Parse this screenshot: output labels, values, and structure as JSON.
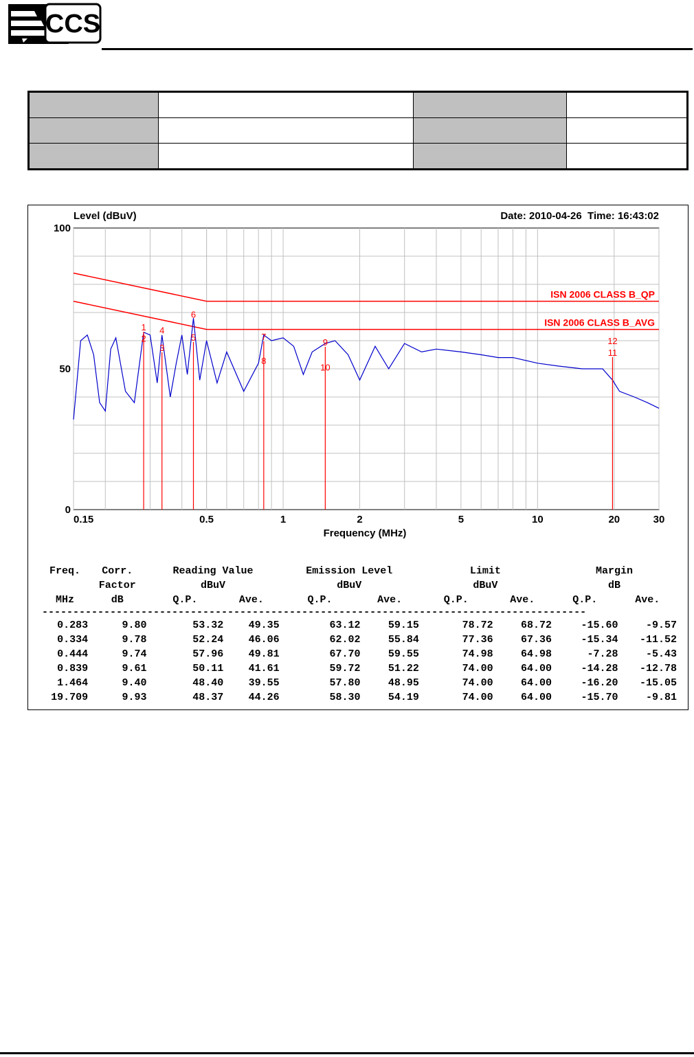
{
  "logo": {
    "text": "CCS"
  },
  "chart_data": {
    "type": "line",
    "title": "",
    "ylabel": "Level (dBuV)",
    "xlabel": "Frequency (MHz)",
    "date_text": "Date: 2010-04-26  Time: 16:43:02",
    "x_scale": "log",
    "xlim": [
      0.15,
      30
    ],
    "ylim": [
      0,
      100
    ],
    "x_ticks": [
      0.15,
      0.5,
      1,
      2,
      5,
      10,
      20,
      30
    ],
    "x_tick_labels": [
      "0.15",
      "0.5",
      "1",
      "2",
      "5",
      "10",
      "20",
      "30"
    ],
    "y_ticks": [
      0,
      50,
      100
    ],
    "y_tick_labels": [
      "0",
      "50",
      "100"
    ],
    "grid": true,
    "series": [
      {
        "name": "ISN 2006 CLASS B_QP",
        "color": "#ff0000",
        "x": [
          0.15,
          0.5,
          30
        ],
        "y": [
          84,
          74,
          74
        ]
      },
      {
        "name": "ISN 2006 CLASS B_AVG",
        "color": "#ff0000",
        "x": [
          0.15,
          0.5,
          30
        ],
        "y": [
          74,
          64,
          64
        ]
      },
      {
        "name": "",
        "color": "#0000cc",
        "x": [
          0.15,
          0.16,
          0.17,
          0.18,
          0.19,
          0.2,
          0.21,
          0.22,
          0.24,
          0.26,
          0.283,
          0.3,
          0.32,
          0.334,
          0.36,
          0.38,
          0.4,
          0.42,
          0.444,
          0.47,
          0.5,
          0.55,
          0.6,
          0.7,
          0.8,
          0.839,
          0.9,
          1.0,
          1.1,
          1.2,
          1.3,
          1.464,
          1.6,
          1.8,
          2.0,
          2.3,
          2.6,
          3.0,
          3.5,
          4.0,
          5.0,
          6.0,
          7.0,
          8.0,
          10.0,
          12.0,
          15.0,
          18.0,
          19.709,
          21.0,
          24.0,
          27.0,
          30.0
        ],
        "y": [
          32,
          60,
          62,
          55,
          38,
          35,
          57,
          61,
          42,
          38,
          63,
          62,
          45,
          62,
          40,
          52,
          62,
          48,
          68,
          46,
          60,
          45,
          56,
          42,
          52,
          62,
          60,
          61,
          58,
          48,
          56,
          59,
          60,
          55,
          46,
          58,
          50,
          59,
          56,
          57,
          56,
          55,
          54,
          54,
          52,
          51,
          50,
          50,
          46,
          42,
          40,
          38,
          36
        ]
      }
    ],
    "markers": [
      {
        "label": "1",
        "x": 0.283,
        "y": 63.12
      },
      {
        "label": "2",
        "x": 0.283,
        "y": 59.15
      },
      {
        "label": "3",
        "x": 0.334,
        "y": 55.84
      },
      {
        "label": "4",
        "x": 0.334,
        "y": 62.02
      },
      {
        "label": "5",
        "x": 0.444,
        "y": 59.55
      },
      {
        "label": "6",
        "x": 0.444,
        "y": 67.7
      },
      {
        "label": "7",
        "x": 0.839,
        "y": 59.72
      },
      {
        "label": "8",
        "x": 0.839,
        "y": 51.22
      },
      {
        "label": "9",
        "x": 1.464,
        "y": 57.8
      },
      {
        "label": "10",
        "x": 1.464,
        "y": 48.95
      },
      {
        "label": "11",
        "x": 19.709,
        "y": 54.19
      },
      {
        "label": "12",
        "x": 19.709,
        "y": 58.3
      }
    ]
  },
  "results": {
    "header_rows": [
      [
        "Freq.",
        "Corr.",
        "Reading Value",
        "",
        "Emission Level",
        "",
        "Limit",
        "",
        "Margin",
        ""
      ],
      [
        "",
        "Factor",
        "dBuV",
        "",
        "dBuV",
        "",
        "dBuV",
        "",
        "dB",
        ""
      ],
      [
        "MHz",
        "dB",
        "Q.P.",
        "Ave.",
        "Q.P.",
        "Ave.",
        "Q.P.",
        "Ave.",
        "Q.P.",
        "Ave."
      ]
    ],
    "separator": "----------------------------------------------------------------------------------------",
    "rows": [
      [
        "0.283",
        "9.80",
        "53.32",
        "49.35",
        "63.12",
        "59.15",
        "78.72",
        "68.72",
        "-15.60",
        "-9.57"
      ],
      [
        "0.334",
        "9.78",
        "52.24",
        "46.06",
        "62.02",
        "55.84",
        "77.36",
        "67.36",
        "-15.34",
        "-11.52"
      ],
      [
        "0.444",
        "9.74",
        "57.96",
        "49.81",
        "67.70",
        "59.55",
        "74.98",
        "64.98",
        "-7.28",
        "-5.43"
      ],
      [
        "0.839",
        "9.61",
        "50.11",
        "41.61",
        "59.72",
        "51.22",
        "74.00",
        "64.00",
        "-14.28",
        "-12.78"
      ],
      [
        "1.464",
        "9.40",
        "48.40",
        "39.55",
        "57.80",
        "48.95",
        "74.00",
        "64.00",
        "-16.20",
        "-15.05"
      ],
      [
        "19.709",
        "9.93",
        "48.37",
        "44.26",
        "58.30",
        "54.19",
        "74.00",
        "64.00",
        "-15.70",
        "-9.81"
      ]
    ]
  }
}
